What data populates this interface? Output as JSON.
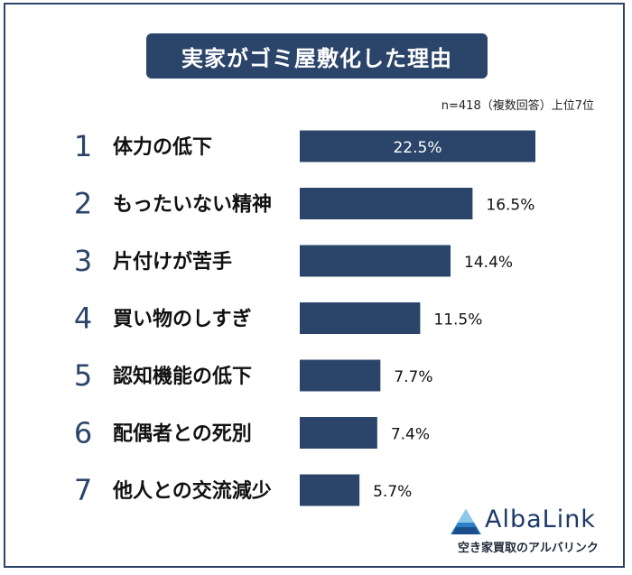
{
  "title": "実家がゴミ屋敷化した理由",
  "note": "n=418（複数回答）上位7位",
  "brand": {
    "name": "AlbaLink",
    "tagline": "空き家買取のアルバリンク"
  },
  "colors": {
    "bar": "#2b4469",
    "rank": "#2b4469",
    "label": "#111111"
  },
  "chart_data": {
    "type": "bar",
    "orientation": "horizontal",
    "title": "実家がゴミ屋敷化した理由",
    "ranks": [
      "1",
      "2",
      "3",
      "4",
      "5",
      "6",
      "7"
    ],
    "categories": [
      "体力の低下",
      "もったいない精神",
      "片付けが苦手",
      "買い物のしすぎ",
      "認知機能の低下",
      "配偶者との死別",
      "他人との交流減少"
    ],
    "values": [
      22.5,
      16.5,
      14.4,
      11.5,
      7.7,
      7.4,
      5.7
    ],
    "value_labels": [
      "22.5%",
      "16.5%",
      "14.4%",
      "11.5%",
      "7.7%",
      "7.4%",
      "5.7%"
    ],
    "unit": "%",
    "xlim": [
      0,
      22.5
    ]
  }
}
